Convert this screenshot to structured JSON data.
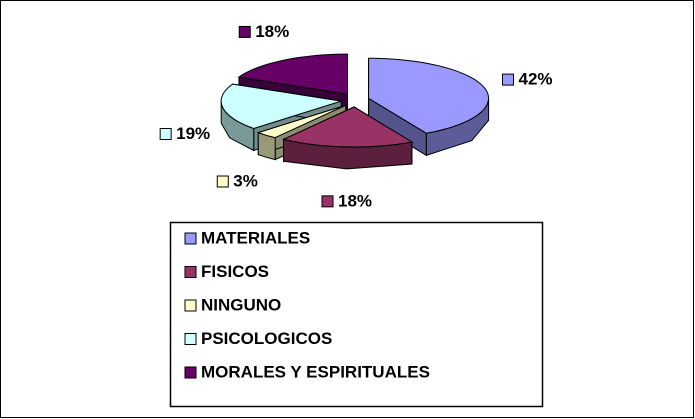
{
  "chart_data": {
    "type": "pie3d",
    "categories": [
      "MATERIALES",
      "FISICOS",
      "NINGUNO",
      "PSICOLOGICOS",
      "MORALES Y ESPIRITUALES"
    ],
    "values": [
      42,
      18,
      3,
      19,
      18
    ],
    "value_labels": [
      "42%",
      "18%",
      "3%",
      "19%",
      "18%"
    ],
    "colors": [
      "#9999ff",
      "#993366",
      "#ffffcc",
      "#ccffff",
      "#660066"
    ],
    "legend": "bottom"
  }
}
